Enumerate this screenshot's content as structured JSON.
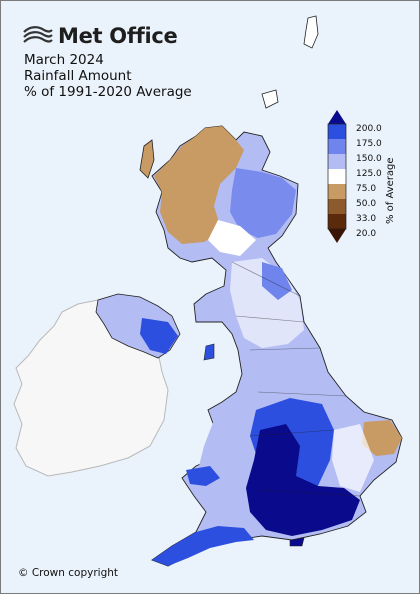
{
  "brand": {
    "name": "Met Office",
    "logo_icon": "swirl-logo-icon"
  },
  "title": {
    "line1": "March 2024",
    "line2": "Rainfall Amount",
    "line3": "% of 1991-2020 Average"
  },
  "colorbar": {
    "axis_label": "% of Average",
    "tick_labels": [
      "200.0",
      "175.0",
      "150.0",
      "125.0",
      "75.0",
      "50.0",
      "33.0",
      "20.0"
    ],
    "bands": [
      {
        "range": "above 200",
        "color": "#0a0a8c"
      },
      {
        "range": "175-200",
        "color": "#2d4fe0"
      },
      {
        "range": "150-175",
        "color": "#6f84ec"
      },
      {
        "range": "125-150",
        "color": "#b3bdf3"
      },
      {
        "range": "75-125",
        "color": "#ffffff"
      },
      {
        "range": "50-75",
        "color": "#c89a64"
      },
      {
        "range": "33-50",
        "color": "#8c5a2d"
      },
      {
        "range": "20-33",
        "color": "#5a2a0a"
      },
      {
        "range": "below 20",
        "color": "#3a1505"
      }
    ]
  },
  "map": {
    "sea_color": "#eaf3fb",
    "land_outline_color": "#222222",
    "ireland_fill": "#f7f7f7",
    "regions": [
      {
        "name": "north-west-scotland",
        "percent_band": "50-75"
      },
      {
        "name": "eastern-scotland",
        "percent_band": "125-150"
      },
      {
        "name": "northern-ireland",
        "percent_band": "150-175"
      },
      {
        "name": "northern-england",
        "percent_band": "125-150"
      },
      {
        "name": "midlands",
        "percent_band": "150-175"
      },
      {
        "name": "southern-england",
        "percent_band": "above 200"
      },
      {
        "name": "east-anglia",
        "percent_band": "50-75"
      },
      {
        "name": "wales",
        "percent_band": "125-150"
      },
      {
        "name": "south-west-england",
        "percent_band": "175-200"
      }
    ]
  },
  "footer": {
    "copyright": "© Crown copyright"
  }
}
